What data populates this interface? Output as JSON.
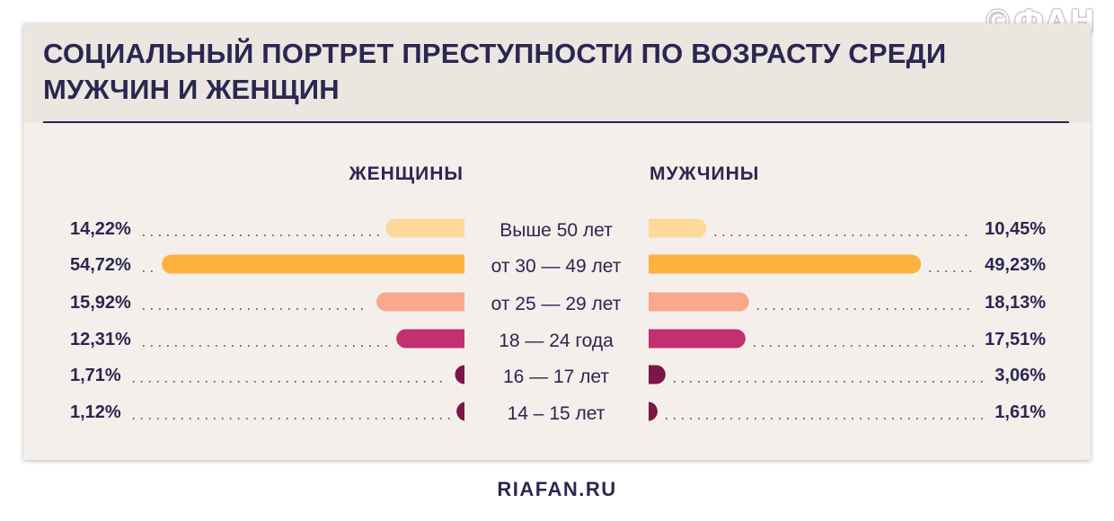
{
  "watermark": "©ФАН",
  "title": "СОЦИАЛЬНЫЙ ПОРТРЕТ ПРЕСТУПНОСТИ ПО ВОЗРАСТУ СРЕДИ МУЖЧИН И ЖЕНЩИН",
  "footer": "RIAFAN.RU",
  "chart_data": {
    "type": "bar",
    "orientation": "horizontal",
    "layout": "butterfly",
    "categories": [
      "Выше 50 лет",
      "от 30 — 49 лет",
      "от 25 — 29 лет",
      "18 — 24 года",
      "16 — 17 лет",
      "14 – 15 лет"
    ],
    "series": [
      {
        "name": "ЖЕНЩИНЫ",
        "side": "left",
        "values": [
          14.22,
          54.72,
          15.92,
          12.31,
          1.71,
          1.12
        ],
        "labels": [
          "14,22%",
          "54,72%",
          "15,92%",
          "12,31%",
          "1,71%",
          "1,12%"
        ]
      },
      {
        "name": "МУЖЧИНЫ",
        "side": "right",
        "values": [
          10.45,
          49.23,
          18.13,
          17.51,
          3.06,
          1.61
        ],
        "labels": [
          "10,45%",
          "49,23%",
          "18,13%",
          "17,51%",
          "3,06%",
          "1,61%"
        ]
      }
    ],
    "category_colors": [
      "#fdd99a",
      "#fdb13e",
      "#f9a88c",
      "#c2306f",
      "#7a1747",
      "#7a1747"
    ],
    "dotted_leaders": true
  }
}
